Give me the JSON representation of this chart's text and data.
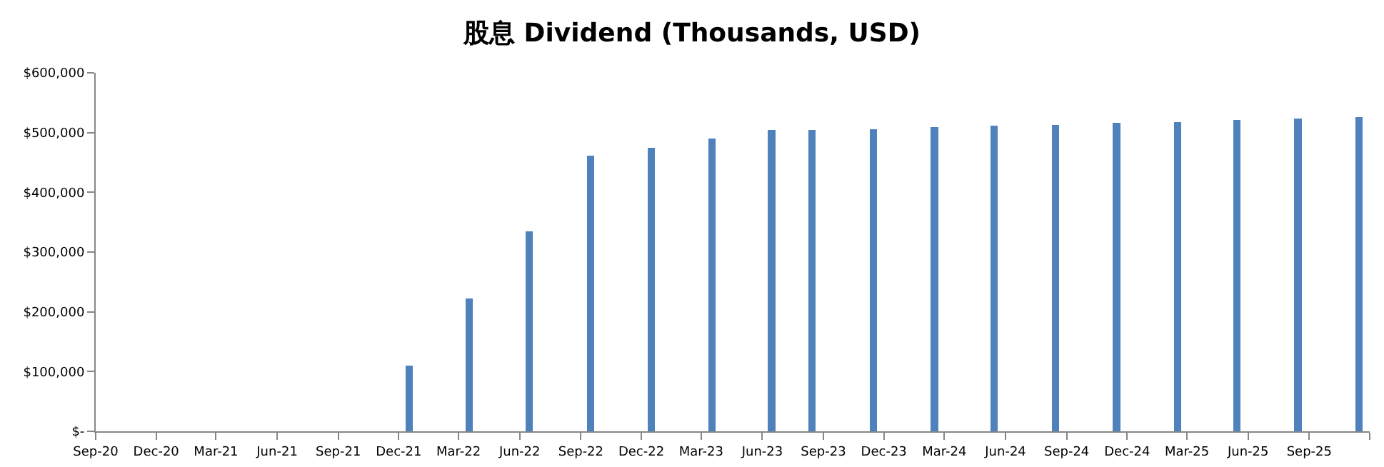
{
  "chart_data": {
    "type": "bar",
    "title": "股息 Dividend (Thousands, USD)",
    "x": [
      "2021-12-17",
      "2022-03-17",
      "2022-06-15",
      "2022-09-16",
      "2022-12-16",
      "2023-03-17",
      "2023-06-15",
      "2023-08-15",
      "2023-11-15",
      "2024-02-15",
      "2024-05-15",
      "2024-08-15",
      "2024-11-15",
      "2025-02-15",
      "2025-05-15",
      "2025-08-15",
      "2025-11-15"
    ],
    "values": [
      110000,
      222000,
      335000,
      461000,
      475000,
      490000,
      504000,
      504000,
      506000,
      509000,
      511000,
      513000,
      516000,
      518000,
      521000,
      523000,
      526000
    ],
    "color": "#4f81bd",
    "xlim": [
      "2020-09-01",
      "2025-12-01"
    ],
    "xticks": [
      {
        "value": "2020-09-01",
        "label": "Sep-20"
      },
      {
        "value": "2020-12-01",
        "label": "Dec-20"
      },
      {
        "value": "2021-03-01",
        "label": "Mar-21"
      },
      {
        "value": "2021-06-01",
        "label": "Jun-21"
      },
      {
        "value": "2021-09-01",
        "label": "Sep-21"
      },
      {
        "value": "2021-12-01",
        "label": "Dec-21"
      },
      {
        "value": "2022-03-01",
        "label": "Mar-22"
      },
      {
        "value": "2022-06-01",
        "label": "Jun-22"
      },
      {
        "value": "2022-09-01",
        "label": "Sep-22"
      },
      {
        "value": "2022-12-01",
        "label": "Dec-22"
      },
      {
        "value": "2023-03-01",
        "label": "Mar-23"
      },
      {
        "value": "2023-06-01",
        "label": "Jun-23"
      },
      {
        "value": "2023-09-01",
        "label": "Sep-23"
      },
      {
        "value": "2023-12-01",
        "label": "Dec-23"
      },
      {
        "value": "2024-03-01",
        "label": "Mar-24"
      },
      {
        "value": "2024-06-01",
        "label": "Jun-24"
      },
      {
        "value": "2024-09-01",
        "label": "Sep-24"
      },
      {
        "value": "2024-12-01",
        "label": "Dec-24"
      },
      {
        "value": "2025-03-01",
        "label": "Mar-25"
      },
      {
        "value": "2025-06-01",
        "label": "Jun-25"
      },
      {
        "value": "2025-09-01",
        "label": "Sep-25"
      },
      {
        "value": "2025-12-01",
        "label": null
      }
    ],
    "ylim": [
      0,
      600000
    ],
    "yticks": [
      {
        "value": 0,
        "label": "$-"
      },
      {
        "value": 100000,
        "label": "$100,000"
      },
      {
        "value": 200000,
        "label": "$200,000"
      },
      {
        "value": 300000,
        "label": "$300,000"
      },
      {
        "value": 400000,
        "label": "$400,000"
      },
      {
        "value": 500000,
        "label": "$500,000"
      },
      {
        "value": 600000,
        "label": "$600,000"
      }
    ],
    "grid": false,
    "legend": false
  }
}
